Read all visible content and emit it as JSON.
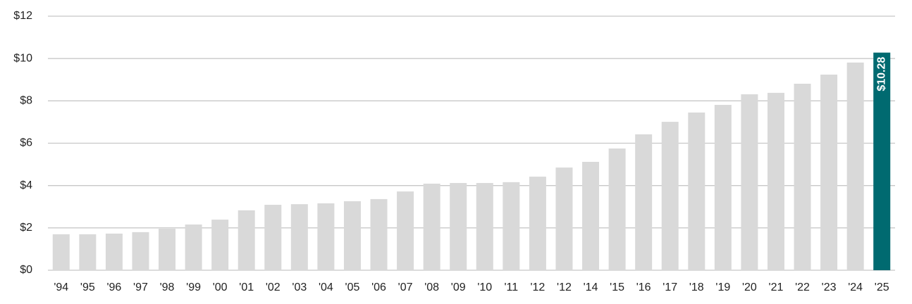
{
  "chart_data": {
    "type": "bar",
    "categories": [
      "'94",
      "'95",
      "'96",
      "'97",
      "'98",
      "'99",
      "'00",
      "'01",
      "'02",
      "'03",
      "'04",
      "'05",
      "'06",
      "'07",
      "'08",
      "'09",
      "'10",
      "'11",
      "'12",
      "'12",
      "'14",
      "'15",
      "'16",
      "'17",
      "'18",
      "'19",
      "'20",
      "'21",
      "'22",
      "'23",
      "'24",
      "'25"
    ],
    "values": [
      1.7,
      1.7,
      1.73,
      1.8,
      1.96,
      2.16,
      2.39,
      2.83,
      3.09,
      3.12,
      3.16,
      3.26,
      3.36,
      3.72,
      4.09,
      4.12,
      4.12,
      4.16,
      4.42,
      4.85,
      5.12,
      5.75,
      6.42,
      7.01,
      7.45,
      7.81,
      8.31,
      8.38,
      8.81,
      9.24,
      9.81,
      10.28
    ],
    "value_labels": [
      null,
      null,
      null,
      null,
      null,
      null,
      null,
      null,
      null,
      null,
      null,
      null,
      null,
      null,
      null,
      null,
      null,
      null,
      null,
      null,
      null,
      null,
      null,
      null,
      null,
      null,
      null,
      null,
      null,
      null,
      null,
      "$10.28"
    ],
    "colors": [
      "#d9d9d9",
      "#d9d9d9",
      "#d9d9d9",
      "#d9d9d9",
      "#d9d9d9",
      "#d9d9d9",
      "#d9d9d9",
      "#d9d9d9",
      "#d9d9d9",
      "#d9d9d9",
      "#d9d9d9",
      "#d9d9d9",
      "#d9d9d9",
      "#d9d9d9",
      "#d9d9d9",
      "#d9d9d9",
      "#d9d9d9",
      "#d9d9d9",
      "#d9d9d9",
      "#d9d9d9",
      "#d9d9d9",
      "#d9d9d9",
      "#d9d9d9",
      "#d9d9d9",
      "#d9d9d9",
      "#d9d9d9",
      "#d9d9d9",
      "#d9d9d9",
      "#d9d9d9",
      "#d9d9d9",
      "#d9d9d9",
      "#006a70"
    ],
    "ylim": [
      0,
      12
    ],
    "yticks": [
      {
        "value": 0,
        "label": "$0"
      },
      {
        "value": 2,
        "label": "$2"
      },
      {
        "value": 4,
        "label": "$4"
      },
      {
        "value": 6,
        "label": "$6"
      },
      {
        "value": 8,
        "label": "$8"
      },
      {
        "value": 10,
        "label": "$10"
      },
      {
        "value": 12,
        "label": "$12"
      }
    ],
    "grid": true
  }
}
